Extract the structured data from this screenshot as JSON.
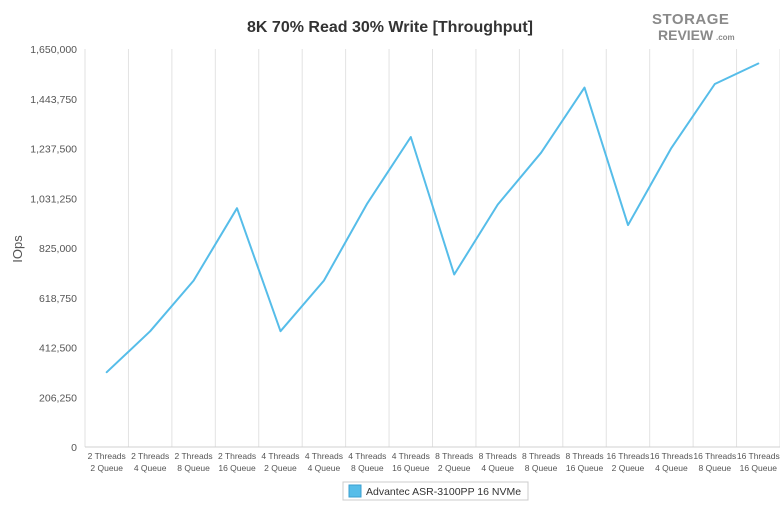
{
  "logo": {
    "line1": "STORAGE",
    "line2": "REVIEW",
    "suffix": ".com"
  },
  "chart_data": {
    "type": "line",
    "title": "8K 70% Read 30% Write [Throughput]",
    "xlabel": "",
    "ylabel": "IOps",
    "ylim": [
      0,
      1650000
    ],
    "yticks": [
      "0",
      "206,250",
      "412,500",
      "618,750",
      "825,000",
      "1,031,250",
      "1,237,500",
      "1,443,750",
      "1,650,000"
    ],
    "categories": [
      [
        "2 Threads",
        "2 Queue"
      ],
      [
        "2 Threads",
        "4 Queue"
      ],
      [
        "2 Threads",
        "8 Queue"
      ],
      [
        "2 Threads",
        "16 Queue"
      ],
      [
        "4 Threads",
        "2 Queue"
      ],
      [
        "4 Threads",
        "4 Queue"
      ],
      [
        "4 Threads",
        "8 Queue"
      ],
      [
        "4 Threads",
        "16 Queue"
      ],
      [
        "8 Threads",
        "2 Queue"
      ],
      [
        "8 Threads",
        "4 Queue"
      ],
      [
        "8 Threads",
        "8 Queue"
      ],
      [
        "8 Threads",
        "16 Queue"
      ],
      [
        "16 Threads",
        "2 Queue"
      ],
      [
        "16 Threads",
        "4 Queue"
      ],
      [
        "16 Threads",
        "8 Queue"
      ],
      [
        "16 Threads",
        "16 Queue"
      ]
    ],
    "series": [
      {
        "name": "Advantec ASR-3100PP 16 NVMe",
        "color": "#56bde9",
        "values": [
          310000,
          480000,
          690000,
          990000,
          480000,
          690000,
          1010000,
          1285000,
          715000,
          1005000,
          1220000,
          1490000,
          920000,
          1240000,
          1505000,
          1590000
        ]
      }
    ],
    "grid": "vertical",
    "legend_position": "bottom"
  }
}
